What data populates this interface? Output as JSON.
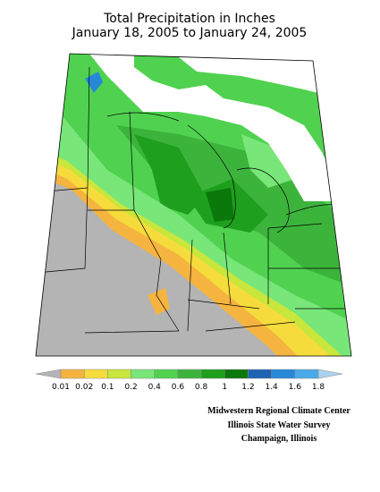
{
  "title": [
    "Total Precipitation in Inches",
    "January 18, 2005 to January 24, 2005"
  ],
  "legend": {
    "colors": [
      "#b4b4b4",
      "#f5b43f",
      "#f5dc3c",
      "#c8e63c",
      "#78e678",
      "#50d250",
      "#3cb43c",
      "#1ea01e",
      "#0a780a",
      "#1e64b4",
      "#2888d8",
      "#4aaae8",
      "#aad2f0"
    ],
    "labels": [
      "0.01",
      "0.02",
      "0.1",
      "0.2",
      "0.4",
      "0.6",
      "0.8",
      "1",
      "1.2",
      "1.4",
      "1.6",
      "1.8"
    ]
  },
  "credits": [
    "Midwestern Regional Climate Center",
    "Illinois State Water Survey",
    "Champaign, Illinois"
  ]
}
